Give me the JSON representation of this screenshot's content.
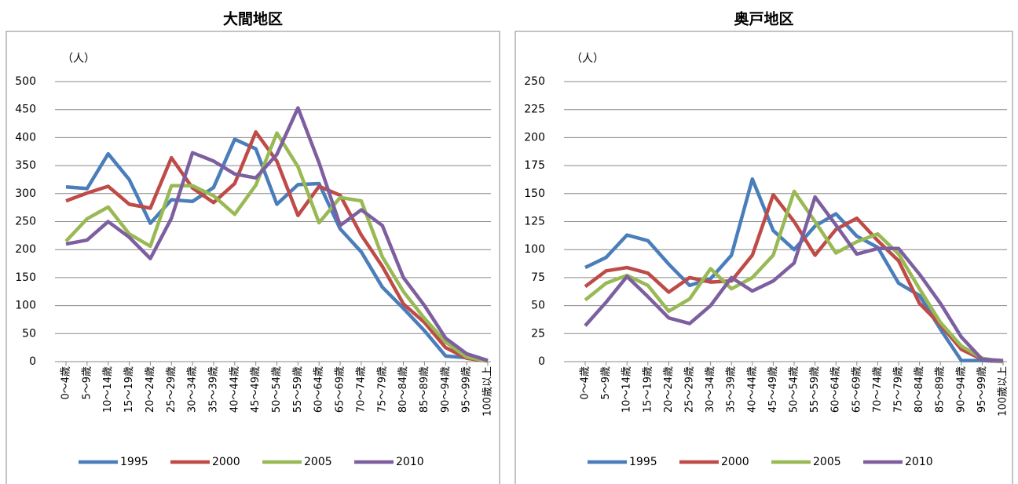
{
  "chart_data": [
    {
      "type": "line",
      "title": "大間地区",
      "y_label": "（人）",
      "categories": [
        "0～4歳",
        "5～9歳",
        "10～14歳",
        "15～19歳",
        "20～24歳",
        "25～29歳",
        "30～34歳",
        "35～39歳",
        "40～44歳",
        "45～49歳",
        "50～54歳",
        "55～59歳",
        "60～64歳",
        "65～69歳",
        "70～74歳",
        "75～79歳",
        "80～84歳",
        "85～89歳",
        "90～94歳",
        "95～99歳",
        "100歳以上"
      ],
      "ylim": [
        0,
        500
      ],
      "yticks": [
        0,
        50,
        100,
        150,
        200,
        250,
        300,
        350,
        400,
        450,
        500
      ],
      "grid": true,
      "legend": "bottom",
      "series": [
        {
          "name": "1995",
          "color": "#4a7ebb",
          "values": [
            312,
            309,
            371,
            325,
            247,
            289,
            286,
            311,
            397,
            380,
            281,
            316,
            318,
            237,
            196,
            133,
            95,
            55,
            10,
            7,
            1
          ]
        },
        {
          "name": "2000",
          "color": "#be4b48",
          "values": [
            287,
            301,
            313,
            281,
            274,
            364,
            310,
            284,
            318,
            410,
            358,
            261,
            313,
            297,
            226,
            170,
            103,
            70,
            25,
            6,
            1
          ]
        },
        {
          "name": "2005",
          "color": "#98b954",
          "values": [
            215,
            255,
            276,
            228,
            206,
            314,
            314,
            296,
            263,
            315,
            408,
            348,
            248,
            293,
            287,
            187,
            125,
            77,
            35,
            8,
            1
          ]
        },
        {
          "name": "2010",
          "color": "#7d5fa0",
          "values": [
            210,
            217,
            250,
            222,
            184,
            256,
            373,
            358,
            335,
            328,
            370,
            453,
            355,
            243,
            271,
            243,
            150,
            100,
            42,
            14,
            2
          ]
        }
      ]
    },
    {
      "type": "line",
      "title": "奥戸地区",
      "y_label": "（人）",
      "categories": [
        "0～4歳",
        "5～9歳",
        "10～14歳",
        "15～19歳",
        "20～24歳",
        "25～29歳",
        "30～34歳",
        "35～39歳",
        "40～44歳",
        "45～49歳",
        "50～54歳",
        "55～59歳",
        "60～64歳",
        "65～69歳",
        "70～74歳",
        "75～79歳",
        "80～84歳",
        "85～89歳",
        "90～94歳",
        "95～99歳",
        "100歳以上"
      ],
      "ylim": [
        0,
        250
      ],
      "yticks": [
        0,
        25,
        50,
        75,
        100,
        125,
        150,
        175,
        200,
        225,
        250
      ],
      "grid": true,
      "legend": "bottom",
      "series": [
        {
          "name": "1995",
          "color": "#4a7ebb",
          "values": [
            84,
            93,
            113,
            108,
            87,
            68,
            74,
            95,
            163,
            117,
            100,
            121,
            132,
            112,
            102,
            70,
            59,
            29,
            1,
            1,
            0
          ]
        },
        {
          "name": "2000",
          "color": "#be4b48",
          "values": [
            67,
            81,
            84,
            79,
            62,
            75,
            71,
            72,
            95,
            149,
            125,
            95,
            118,
            128,
            108,
            90,
            52,
            33,
            11,
            2,
            0
          ]
        },
        {
          "name": "2005",
          "color": "#98b954",
          "values": [
            55,
            70,
            77,
            68,
            45,
            56,
            83,
            65,
            75,
            95,
            152,
            125,
            97,
            107,
            114,
            96,
            65,
            35,
            14,
            3,
            0
          ]
        },
        {
          "name": "2010",
          "color": "#7d5fa0",
          "values": [
            32,
            53,
            76,
            58,
            39,
            34,
            50,
            75,
            63,
            72,
            88,
            147,
            122,
            96,
            101,
            101,
            78,
            52,
            22,
            2,
            1
          ]
        }
      ]
    }
  ]
}
